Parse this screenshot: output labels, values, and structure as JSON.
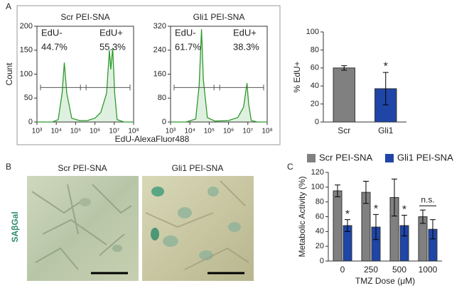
{
  "panel_labels": [
    "A",
    "B",
    "C"
  ],
  "images": {
    "titles": [
      "Scr PEI-SNA",
      "Gli1 PEI-SNA"
    ],
    "stain": "SAβGal"
  },
  "chart_data": [
    {
      "type": "area",
      "title": "Scr PEI-SNA",
      "xscale": "log",
      "color": "#2e9a2e",
      "xlabel": "EdU-AlexaFluor488",
      "ylabel": "Count",
      "x": [
        1000,
        6300,
        12600,
        20000,
        26000,
        35000,
        63000,
        160000,
        400000,
        1000000,
        2000000,
        4000000,
        5600000,
        6600000,
        8300000,
        10500000,
        14000000,
        32000000,
        100000000
      ],
      "values": [
        0,
        0,
        5,
        60,
        124,
        60,
        8,
        3,
        3,
        8,
        20,
        60,
        150,
        110,
        155,
        60,
        5,
        0,
        0
      ],
      "xlim": [
        1000,
        100000000
      ],
      "xticks": [
        {
          "value": 1000,
          "label": "10³"
        },
        {
          "value": 10000,
          "label": "10⁴"
        },
        {
          "value": 100000,
          "label": "10⁵"
        },
        {
          "value": 1000000,
          "label": "10⁶"
        },
        {
          "value": 10000000,
          "label": "10⁷"
        },
        {
          "value": 100000000,
          "label": "10⁸"
        }
      ],
      "ylim": [
        0,
        200
      ],
      "yticks": [
        0,
        50,
        100,
        150,
        200
      ],
      "annotations": [
        "EdU-",
        "44.7%",
        "EdU+",
        "55.3%"
      ]
    },
    {
      "type": "area",
      "title": "Gli1 PEI-SNA",
      "xscale": "log",
      "color": "#2e9a2e",
      "x": [
        1000,
        6300,
        20000,
        30000,
        40000,
        50000,
        80000,
        200000,
        1000000,
        3000000,
        6000000,
        9000000,
        11000000,
        15000000,
        32000000,
        100000000
      ],
      "values": [
        0,
        0,
        10,
        120,
        310,
        140,
        15,
        3,
        5,
        15,
        50,
        130,
        60,
        5,
        0,
        0
      ],
      "xlim": [
        1000,
        100000000
      ],
      "xticks": [
        {
          "value": 1000,
          "label": "10³"
        },
        {
          "value": 10000,
          "label": "10⁴"
        },
        {
          "value": 100000,
          "label": "10⁵"
        },
        {
          "value": 1000000,
          "label": "10⁶"
        },
        {
          "value": 10000000,
          "label": "10⁷"
        },
        {
          "value": 100000000,
          "label": "10⁸"
        }
      ],
      "ylim": [
        0,
        320
      ],
      "yticks": [
        0,
        80,
        160,
        240,
        320
      ],
      "annotations": [
        "EdU-",
        "61.7%",
        "EdU+",
        "38.3%"
      ]
    },
    {
      "type": "bar",
      "ylabel": "% EdU+",
      "categories": [
        "Scr",
        "Gli1"
      ],
      "values": [
        60,
        37
      ],
      "errors": [
        2.5,
        18
      ],
      "colors": [
        "#808080",
        "#1f45a6"
      ],
      "ylim": [
        0,
        100
      ],
      "yticks": [
        0,
        20,
        40,
        60,
        80,
        100
      ],
      "annotations": [
        "*"
      ]
    },
    {
      "type": "grouped",
      "xlabel": "TMZ Dose (μM)",
      "ylabel": "Metabolic Activity (%)",
      "categories": [
        "0",
        "250",
        "500",
        "1000"
      ],
      "legend": "top",
      "series": [
        {
          "name": "Scr PEI-SNA",
          "color": "#808080",
          "values": [
            95,
            93,
            86,
            60
          ],
          "errors": [
            8,
            15,
            25,
            9
          ]
        },
        {
          "name": "Gli1 PEI-SNA",
          "color": "#1f45a6",
          "values": [
            48,
            46,
            48,
            43
          ],
          "errors": [
            8,
            17,
            14,
            13
          ]
        }
      ],
      "ylim": [
        0,
        120
      ],
      "yticks": [
        0,
        20,
        40,
        60,
        80,
        100,
        120
      ],
      "annotations": [
        "*",
        "*",
        "*",
        "n.s."
      ]
    }
  ]
}
